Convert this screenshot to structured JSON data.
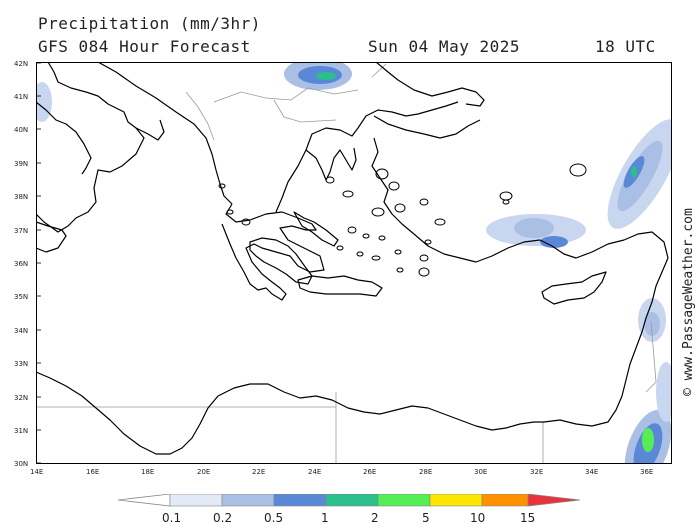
{
  "header": {
    "title": "Precipitation (mm/3hr)",
    "subtitle": "GFS 084 Hour Forecast",
    "date": "Sun 04 May 2025",
    "time": "18 UTC"
  },
  "map": {
    "lat_labels": [
      "42N",
      "41N",
      "40N",
      "39N",
      "38N",
      "37N",
      "36N",
      "35N",
      "34N",
      "33N",
      "32N",
      "31N",
      "30N"
    ],
    "lon_labels": [
      "14E",
      "16E",
      "18E",
      "20E",
      "22E",
      "24E",
      "26E",
      "28E",
      "30E",
      "32E",
      "34E",
      "36E"
    ],
    "colors": {
      "land_border": "#000000",
      "political_border": "#999999"
    }
  },
  "credit": "© www.PassageWeather.com",
  "legend": {
    "labels": [
      "0.1",
      "0.2",
      "0.5",
      "1",
      "2",
      "5",
      "10",
      "15"
    ],
    "colors": [
      "#ffffff",
      "#e3eaf6",
      "#a9bfe3",
      "#5b88d6",
      "#2bbf8b",
      "#55ee55",
      "#ffe600",
      "#ff9000",
      "#e8323c"
    ]
  }
}
